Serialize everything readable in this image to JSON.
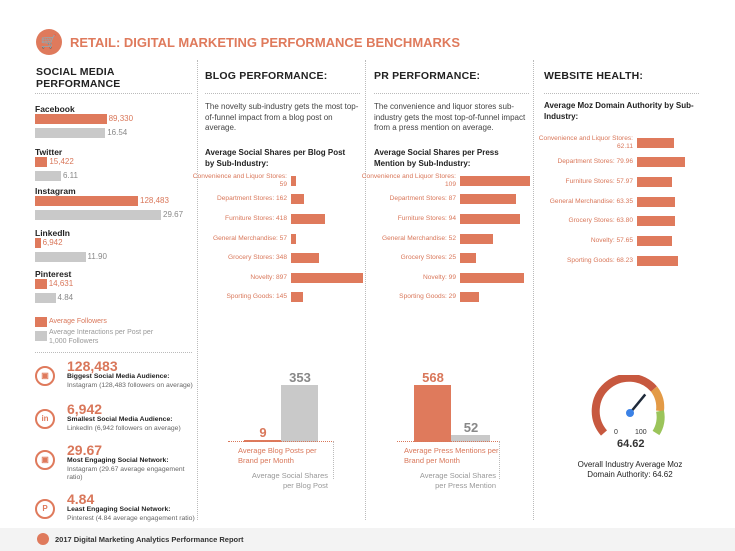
{
  "header": {
    "title": "RETAIL: DIGITAL MARKETING PERFORMANCE BENCHMARKS",
    "icon": "shopping-cart-icon"
  },
  "colors": {
    "accent": "#df7a5c",
    "grey": "#c9c9c9"
  },
  "social": {
    "heading": "SOCIAL MEDIA PERFORMANCE",
    "networks": [
      {
        "name": "Facebook",
        "followers": 89330,
        "followers_label": "89,330",
        "interactions": 16.54,
        "interactions_label": "16.54"
      },
      {
        "name": "Twitter",
        "followers": 15422,
        "followers_label": "15,422",
        "interactions": 6.11,
        "interactions_label": "6.11"
      },
      {
        "name": "Instagram",
        "followers": 128483,
        "followers_label": "128,483",
        "interactions": 29.67,
        "interactions_label": "29.67"
      },
      {
        "name": "LinkedIn",
        "followers": 6942,
        "followers_label": "6,942",
        "interactions": 11.9,
        "interactions_label": "11.90"
      },
      {
        "name": "Pinterest",
        "followers": 14631,
        "followers_label": "14,631",
        "interactions": 4.84,
        "interactions_label": "4.84"
      }
    ],
    "legend": {
      "followers": "Average Followers",
      "interactions": "Average Interactions per Post per 1,000 Followers"
    },
    "stats": [
      {
        "icon": "instagram-icon",
        "number": "128,483",
        "title": "Biggest Social Media Audience:",
        "desc": "Instagram (128,483 followers on average)"
      },
      {
        "icon": "linkedin-icon",
        "number": "6,942",
        "title": "Smallest Social Media Audience:",
        "desc": "LinkedIn (6,942 followers on average)"
      },
      {
        "icon": "instagram-icon",
        "number": "29.67",
        "title": "Most Engaging Social Network:",
        "desc": "Instagram (29.67 average engagement ratio)"
      },
      {
        "icon": "pinterest-icon",
        "number": "4.84",
        "title": "Least Engaging Social Network:",
        "desc": "Pinterest (4.84 average engagement ratio)"
      }
    ]
  },
  "blog": {
    "heading": "BLOG PERFORMANCE:",
    "text": "The novelty sub-industry gets the most top-of-funnel impact from a blog post on average.",
    "subtitle": "Average Social Shares per Blog Post by Sub-Industry:",
    "bottom": {
      "posts": 9,
      "posts_label": "9",
      "shares": 353,
      "shares_label": "353",
      "posts_caption": "Average Blog Posts per Brand per Month",
      "shares_caption": "Average Social Shares per Blog Post"
    }
  },
  "pr": {
    "heading": "PR PERFORMANCE:",
    "text": "The convenience and liquor stores sub-industry gets the most top-of-funnel impact from a press mention on average.",
    "subtitle": "Average Social Shares per Press Mention by Sub-Industry:",
    "bottom": {
      "mentions": 568,
      "mentions_label": "568",
      "shares": 52,
      "shares_label": "52",
      "mentions_caption": "Average Press Mentions per Brand per Month",
      "shares_caption": "Average Social Shares per Press Mention"
    }
  },
  "website": {
    "heading": "WEBSITE HEALTH:",
    "subtitle": "Average Moz Domain Authority by Sub-Industry:",
    "gauge": {
      "value": 64.62,
      "value_label": "64.62",
      "min_label": "0",
      "max_label": "100",
      "caption": "Overall Industry Average Moz Domain Authority: 64.62"
    }
  },
  "chart_data": [
    {
      "type": "bar",
      "title": "Average Social Shares per Blog Post by Sub-Industry",
      "categories": [
        "Convenience and Liquor Stores",
        "Department Stores",
        "Furniture Stores",
        "General Merchandise",
        "Grocery Stores",
        "Novelty",
        "Sporting Goods"
      ],
      "values": [
        59,
        162,
        418,
        57,
        348,
        897,
        145
      ],
      "labels": [
        "Convenience and Liquor Stores: 59",
        "Department Stores: 162",
        "Furniture Stores: 418",
        "General Merchandise: 57",
        "Grocery Stores: 348",
        "Novelty: 897",
        "Sporting Goods: 145"
      ]
    },
    {
      "type": "bar",
      "title": "Average Social Shares per Press Mention by Sub-Industry",
      "categories": [
        "Convenience and Liquor Stores",
        "Department Stores",
        "Furniture Stores",
        "General Merchandise",
        "Grocery Stores",
        "Novelty",
        "Sporting Goods"
      ],
      "values": [
        109,
        87,
        94,
        52,
        25,
        99,
        29
      ],
      "labels": [
        "Convenience and Liquor Stores: 109",
        "Department Stores: 87",
        "Furniture Stores: 94",
        "General Merchandise: 52",
        "Grocery Stores: 25",
        "Novelty: 99",
        "Sporting Goods: 29"
      ]
    },
    {
      "type": "bar",
      "title": "Average Moz Domain Authority by Sub-Industry",
      "categories": [
        "Convenience and Liquor Stores",
        "Department Stores",
        "Furniture Stores",
        "General Merchandise",
        "Grocery Stores",
        "Novelty",
        "Sporting Goods"
      ],
      "values": [
        62.11,
        79.96,
        57.97,
        63.35,
        63.8,
        57.65,
        68.23
      ],
      "labels": [
        "Convenience and Liquor Stores: 62.11",
        "Department Stores: 79.96",
        "Furniture Stores: 57.97",
        "General Merchandise: 63.35",
        "Grocery Stores: 63.80",
        "Novelty: 57.65",
        "Sporting Goods: 68.23"
      ]
    }
  ],
  "footer": {
    "text": "2017 Digital Marketing Analytics Performance Report"
  }
}
